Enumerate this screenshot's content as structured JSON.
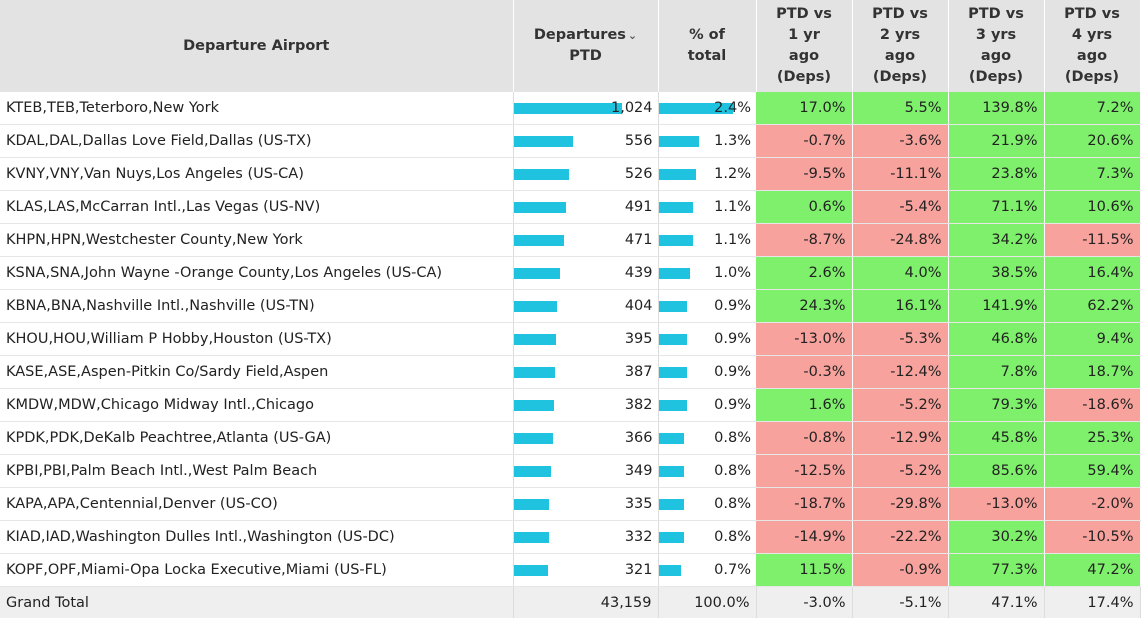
{
  "header": {
    "airport": "Departure Airport",
    "departures_line1": "Departures",
    "departures_line2": "PTD",
    "pct_line1": "% of",
    "pct_line2": "total",
    "m1": [
      "PTD vs",
      "1 yr",
      "ago",
      "(Deps)"
    ],
    "m2": [
      "PTD vs",
      "2 yrs",
      "ago",
      "(Deps)"
    ],
    "m3": [
      "PTD vs",
      "3 yrs",
      "ago",
      "(Deps)"
    ],
    "m4": [
      "PTD vs",
      "4 yrs",
      "ago",
      "(Deps)"
    ]
  },
  "colors": {
    "bar": "#1fc3df",
    "positive": "#7ef06b",
    "negative": "#f7a29c",
    "header_bg": "#e3e3e3",
    "total_bg": "#efefef"
  },
  "chart_data": {
    "type": "table",
    "columns": [
      "Departure Airport",
      "Departures PTD",
      "% of total",
      "PTD vs 1 yr ago (Deps)",
      "PTD vs 2 yrs ago (Deps)",
      "PTD vs 3 yrs ago (Deps)",
      "PTD vs 4 yrs ago (Deps)"
    ],
    "rows": [
      {
        "airport": "KTEB,TEB,Teterboro,New York",
        "departures": "1,024",
        "departures_value": 1024,
        "pct": "2.4%",
        "pct_value": 2.4,
        "m1": "17.0%",
        "m2": "5.5%",
        "m3": "139.8%",
        "m4": "7.2%"
      },
      {
        "airport": "KDAL,DAL,Dallas Love Field,Dallas (US-TX)",
        "departures": "556",
        "departures_value": 556,
        "pct": "1.3%",
        "pct_value": 1.3,
        "m1": "-0.7%",
        "m2": "-3.6%",
        "m3": "21.9%",
        "m4": "20.6%"
      },
      {
        "airport": "KVNY,VNY,Van Nuys,Los Angeles (US-CA)",
        "departures": "526",
        "departures_value": 526,
        "pct": "1.2%",
        "pct_value": 1.2,
        "m1": "-9.5%",
        "m2": "-11.1%",
        "m3": "23.8%",
        "m4": "7.3%"
      },
      {
        "airport": "KLAS,LAS,McCarran Intl.,Las Vegas (US-NV)",
        "departures": "491",
        "departures_value": 491,
        "pct": "1.1%",
        "pct_value": 1.1,
        "m1": "0.6%",
        "m2": "-5.4%",
        "m3": "71.1%",
        "m4": "10.6%"
      },
      {
        "airport": "KHPN,HPN,Westchester County,New York",
        "departures": "471",
        "departures_value": 471,
        "pct": "1.1%",
        "pct_value": 1.1,
        "m1": "-8.7%",
        "m2": "-24.8%",
        "m3": "34.2%",
        "m4": "-11.5%"
      },
      {
        "airport": "KSNA,SNA,John Wayne -Orange County,Los Angeles (US-CA)",
        "departures": "439",
        "departures_value": 439,
        "pct": "1.0%",
        "pct_value": 1.0,
        "m1": "2.6%",
        "m2": "4.0%",
        "m3": "38.5%",
        "m4": "16.4%"
      },
      {
        "airport": "KBNA,BNA,Nashville Intl.,Nashville (US-TN)",
        "departures": "404",
        "departures_value": 404,
        "pct": "0.9%",
        "pct_value": 0.9,
        "m1": "24.3%",
        "m2": "16.1%",
        "m3": "141.9%",
        "m4": "62.2%"
      },
      {
        "airport": "KHOU,HOU,William P Hobby,Houston (US-TX)",
        "departures": "395",
        "departures_value": 395,
        "pct": "0.9%",
        "pct_value": 0.9,
        "m1": "-13.0%",
        "m2": "-5.3%",
        "m3": "46.8%",
        "m4": "9.4%"
      },
      {
        "airport": "KASE,ASE,Aspen-Pitkin Co/Sardy Field,Aspen",
        "departures": "387",
        "departures_value": 387,
        "pct": "0.9%",
        "pct_value": 0.9,
        "m1": "-0.3%",
        "m2": "-12.4%",
        "m3": "7.8%",
        "m4": "18.7%"
      },
      {
        "airport": "KMDW,MDW,Chicago Midway Intl.,Chicago",
        "departures": "382",
        "departures_value": 382,
        "pct": "0.9%",
        "pct_value": 0.9,
        "m1": "1.6%",
        "m2": "-5.2%",
        "m3": "79.3%",
        "m4": "-18.6%"
      },
      {
        "airport": "KPDK,PDK,DeKalb Peachtree,Atlanta (US-GA)",
        "departures": "366",
        "departures_value": 366,
        "pct": "0.8%",
        "pct_value": 0.8,
        "m1": "-0.8%",
        "m2": "-12.9%",
        "m3": "45.8%",
        "m4": "25.3%"
      },
      {
        "airport": "KPBI,PBI,Palm Beach Intl.,West Palm Beach",
        "departures": "349",
        "departures_value": 349,
        "pct": "0.8%",
        "pct_value": 0.8,
        "m1": "-12.5%",
        "m2": "-5.2%",
        "m3": "85.6%",
        "m4": "59.4%"
      },
      {
        "airport": "KAPA,APA,Centennial,Denver (US-CO)",
        "departures": "335",
        "departures_value": 335,
        "pct": "0.8%",
        "pct_value": 0.8,
        "m1": "-18.7%",
        "m2": "-29.8%",
        "m3": "-13.0%",
        "m4": "-2.0%"
      },
      {
        "airport": "KIAD,IAD,Washington Dulles Intl.,Washington (US-DC)",
        "departures": "332",
        "departures_value": 332,
        "pct": "0.8%",
        "pct_value": 0.8,
        "m1": "-14.9%",
        "m2": "-22.2%",
        "m3": "30.2%",
        "m4": "-10.5%"
      },
      {
        "airport": "KOPF,OPF,Miami-Opa Locka Executive,Miami (US-FL)",
        "departures": "321",
        "departures_value": 321,
        "pct": "0.7%",
        "pct_value": 0.7,
        "m1": "11.5%",
        "m2": "-0.9%",
        "m3": "77.3%",
        "m4": "47.2%"
      }
    ],
    "total": {
      "label": "Grand Total",
      "departures": "43,159",
      "pct": "100.0%",
      "m1": "-3.0%",
      "m2": "-5.1%",
      "m3": "47.1%",
      "m4": "17.4%"
    }
  }
}
